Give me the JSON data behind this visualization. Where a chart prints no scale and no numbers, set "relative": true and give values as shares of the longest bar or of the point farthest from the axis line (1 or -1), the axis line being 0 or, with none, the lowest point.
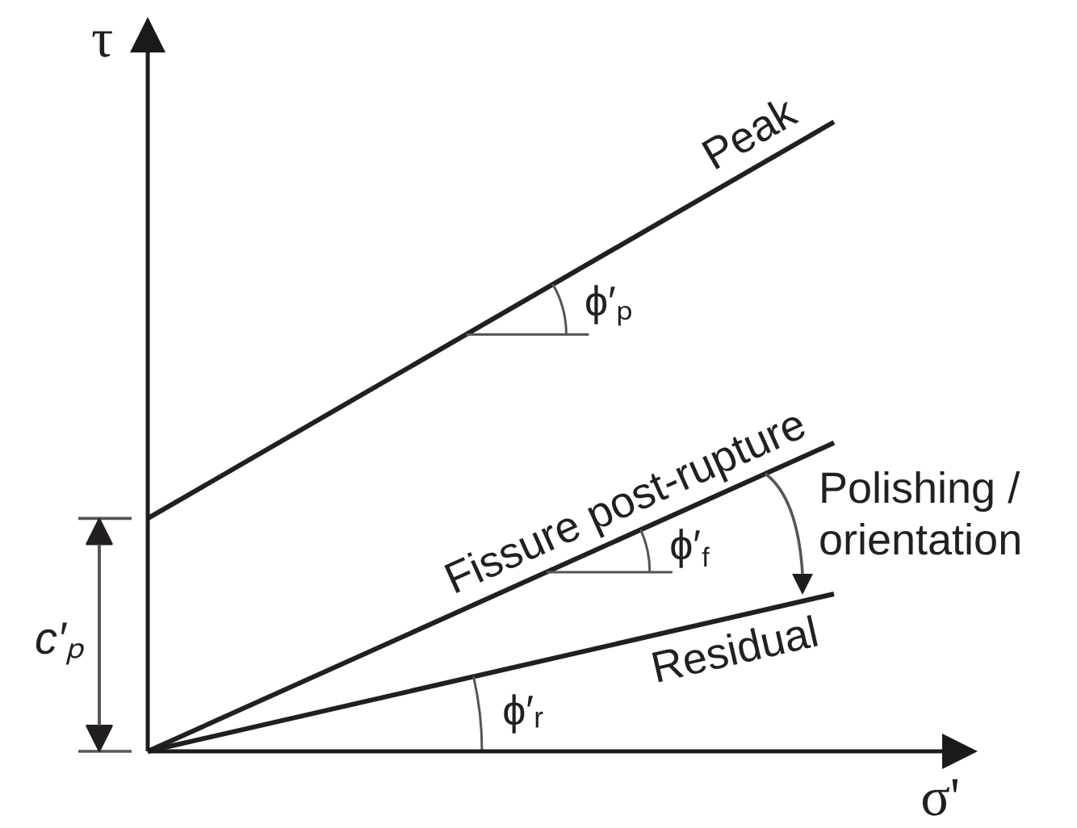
{
  "chart_data": {
    "type": "line",
    "relative": true,
    "categories": [
      null,
      null
    ],
    "xlabel": "σ'",
    "ylabel": "τ",
    "line_style": "solid",
    "grid": false,
    "series": [
      {
        "name": "Peak",
        "color": "#231f20",
        "values": [
          0.37,
          1
        ]
      },
      {
        "name": "Fissure post-rupture",
        "color": "#231f20",
        "values": [
          0,
          0.49
        ]
      },
      {
        "name": "Residual",
        "color": "#231f20",
        "values": [
          0,
          0.25
        ]
      }
    ],
    "annotations": [
      "c′ₚ",
      "ϕ′ₚ",
      "ϕ′$_{f}$",
      "ϕ′ᵣ",
      "Polishing / orientation"
    ]
  }
}
